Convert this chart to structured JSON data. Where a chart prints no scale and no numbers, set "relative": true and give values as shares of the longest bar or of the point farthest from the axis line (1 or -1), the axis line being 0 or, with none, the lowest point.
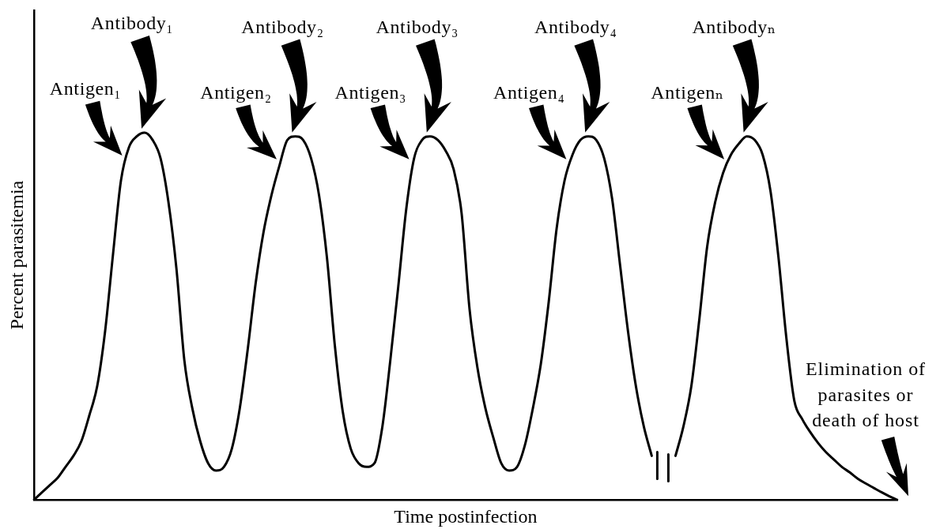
{
  "chart_data": {
    "type": "line",
    "xlabel": "Time postinfection",
    "ylabel": "Percent parasitemia",
    "relative": true,
    "color": "#000000",
    "categories": [
      null,
      null,
      null,
      null,
      null,
      null,
      null,
      null,
      null,
      null,
      null,
      null,
      null,
      null,
      null,
      null,
      null,
      null,
      null,
      null,
      null,
      null,
      null,
      null,
      null,
      null,
      null,
      null,
      null,
      null,
      null,
      null,
      null,
      null,
      null,
      null,
      null,
      null,
      null,
      null,
      null,
      null,
      null,
      null,
      null,
      null,
      null,
      null,
      null,
      null,
      null,
      null,
      null,
      null,
      null,
      null,
      null,
      null,
      null,
      null,
      null,
      null,
      null,
      null,
      null,
      null,
      null,
      null,
      null,
      null,
      null,
      null,
      null,
      null,
      null,
      null,
      null,
      null,
      null,
      null,
      null,
      null,
      null,
      null,
      null,
      null,
      null,
      null,
      null,
      null,
      null,
      null,
      null,
      null,
      null,
      null,
      null,
      null,
      null,
      null,
      null,
      null,
      null,
      null,
      null,
      null,
      null,
      null,
      null,
      null
    ],
    "values": [
      0,
      0.02,
      0.04,
      0.06,
      0.09,
      0.12,
      0.16,
      0.23,
      0.31,
      0.46,
      0.67,
      0.87,
      0.96,
      0.99,
      1,
      0.98,
      0.93,
      0.81,
      0.63,
      0.38,
      0.25,
      0.16,
      0.1,
      0.08,
      0.09,
      0.14,
      0.25,
      0.41,
      0.59,
      0.73,
      0.83,
      0.91,
      0.98,
      0.99,
      0.98,
      0.93,
      0.83,
      0.66,
      0.42,
      0.24,
      0.14,
      0.1,
      0.09,
      0.1,
      0.2,
      0.38,
      0.58,
      0.79,
      0.93,
      0.98,
      0.99,
      0.98,
      0.95,
      0.9,
      0.78,
      0.52,
      0.36,
      0.25,
      0.17,
      0.1,
      0.08,
      0.09,
      0.15,
      0.25,
      0.37,
      0.54,
      0.74,
      0.87,
      0.94,
      0.98,
      0.99,
      0.98,
      0.93,
      0.82,
      0.64,
      0.46,
      0.31,
      0.2,
      0.12,
      null,
      null,
      0.12,
      0.2,
      0.31,
      0.49,
      0.69,
      0.81,
      0.89,
      0.94,
      0.97,
      0.99,
      0.98,
      0.94,
      0.84,
      0.66,
      0.44,
      0.27,
      0.22,
      0.185,
      0.155,
      0.13,
      0.11,
      0.09,
      0.075,
      0.058,
      0.045,
      0.033,
      0.021,
      0.01,
      0
    ],
    "annotations": [
      "Antigen₁",
      "Antibody₁",
      "Antigen₂",
      "Antibody₂",
      "Antigen₃",
      "Antibody₃",
      "Antigen₄",
      "Antibody₄",
      "Antigenₙ",
      "Antibodyₙ",
      "Elimination of parasites or death of host"
    ]
  }
}
